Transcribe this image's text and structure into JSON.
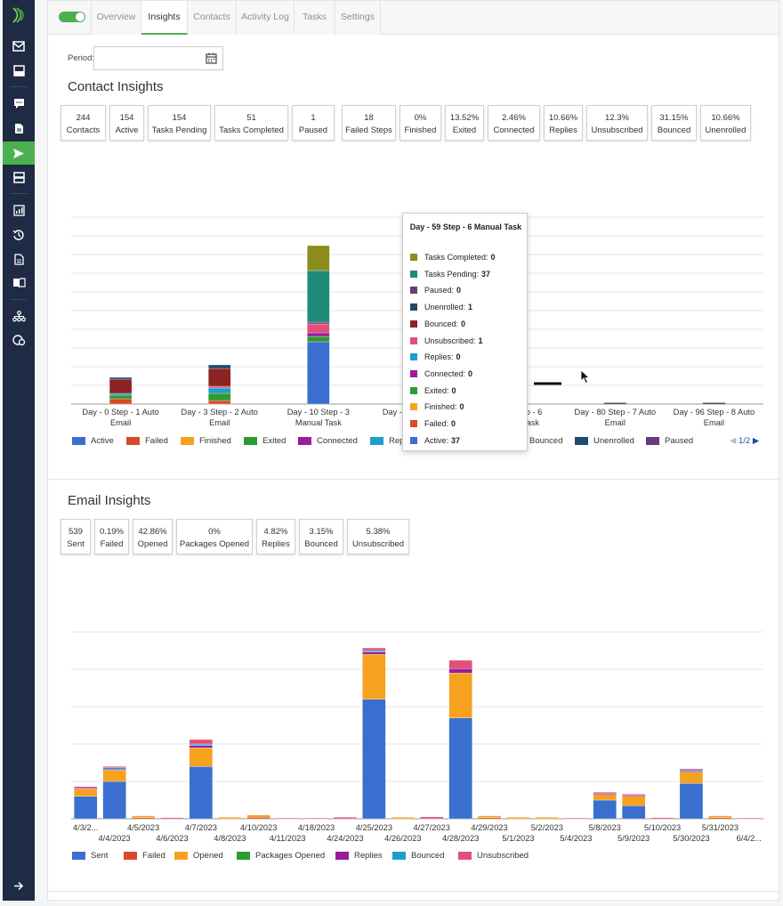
{
  "tabs": [
    {
      "label": "Overview"
    },
    {
      "label": "Insights"
    },
    {
      "label": "Contacts"
    },
    {
      "label": "Activity Log"
    },
    {
      "label": "Tasks"
    },
    {
      "label": "Settings"
    }
  ],
  "period": {
    "label": "Period:",
    "value": ""
  },
  "contact_insights": {
    "title": "Contact Insights",
    "stats": [
      {
        "value": "244",
        "label": "Contacts"
      },
      {
        "value": "154",
        "label": "Active"
      },
      {
        "value": "154",
        "label": "Tasks Pending"
      },
      {
        "value": "51",
        "label": "Tasks Completed"
      },
      {
        "value": "1",
        "label": "Paused"
      },
      {
        "value": "18",
        "label": "Failed Steps"
      },
      {
        "value": "0%",
        "label": "Finished"
      },
      {
        "value": "13.52%",
        "label": "Exited"
      },
      {
        "value": "2.46%",
        "label": "Connected"
      },
      {
        "value": "10.66%",
        "label": "Replies"
      },
      {
        "value": "12.3%",
        "label": "Unsubscribed"
      },
      {
        "value": "31.15%",
        "label": "Bounced"
      },
      {
        "value": "10.66%",
        "label": "Unenrolled"
      }
    ],
    "legend": [
      {
        "label": "Active",
        "color": "#3a6fd0"
      },
      {
        "label": "Failed",
        "color": "#d94a2a"
      },
      {
        "label": "Finished",
        "color": "#f6a21e"
      },
      {
        "label": "Exited",
        "color": "#2e9b2e"
      },
      {
        "label": "Connected",
        "color": "#9b1c9b"
      },
      {
        "label": "Rep",
        "color": "#1f9ec9"
      },
      {
        "label": "Bounced",
        "color": "#8b2323"
      },
      {
        "label": "Unenrolled",
        "color": "#1f4a6e"
      },
      {
        "label": "Paused",
        "color": "#6b3a7a"
      }
    ],
    "pager": "1/2"
  },
  "tooltip": {
    "title": "Day - 59 Step - 6 Manual Task",
    "rows": [
      {
        "label": "Tasks Completed:",
        "value": "0",
        "color": "#8c8c1e"
      },
      {
        "label": "Tasks Pending:",
        "value": "37",
        "color": "#1f8a78"
      },
      {
        "label": "Paused:",
        "value": "0",
        "color": "#6b3a7a"
      },
      {
        "label": "Unenrolled:",
        "value": "1",
        "color": "#1f4a6e"
      },
      {
        "label": "Bounced:",
        "value": "0",
        "color": "#8b2323"
      },
      {
        "label": "Unsubscribed:",
        "value": "1",
        "color": "#e0507a"
      },
      {
        "label": "Replies:",
        "value": "0",
        "color": "#1f9ec9"
      },
      {
        "label": "Connected:",
        "value": "0",
        "color": "#9b1c9b"
      },
      {
        "label": "Exited:",
        "value": "0",
        "color": "#2e9b2e"
      },
      {
        "label": "Finished:",
        "value": "0",
        "color": "#f6a21e"
      },
      {
        "label": "Failed:",
        "value": "0",
        "color": "#d94a2a"
      },
      {
        "label": "Active:",
        "value": "37",
        "color": "#3a6fd0"
      }
    ]
  },
  "email_insights": {
    "title": "Email Insights",
    "stats": [
      {
        "value": "539",
        "label": "Sent"
      },
      {
        "value": "0.19%",
        "label": "Failed"
      },
      {
        "value": "42.86%",
        "label": "Opened"
      },
      {
        "value": "0%",
        "label": "Packages Opened"
      },
      {
        "value": "4.82%",
        "label": "Replies"
      },
      {
        "value": "3.15%",
        "label": "Bounced"
      },
      {
        "value": "5.38%",
        "label": "Unsubscribed"
      }
    ],
    "legend": [
      {
        "label": "Sent",
        "color": "#3a6fd0"
      },
      {
        "label": "Failed",
        "color": "#d94a2a"
      },
      {
        "label": "Opened",
        "color": "#f6a21e"
      },
      {
        "label": "Packages Opened",
        "color": "#2e9b2e"
      },
      {
        "label": "Replies",
        "color": "#9b1c9b"
      },
      {
        "label": "Bounced",
        "color": "#1f9ec9"
      },
      {
        "label": "Unsubscribed",
        "color": "#e0507a"
      }
    ]
  },
  "chart_data": [
    {
      "type": "bar",
      "stacked": true,
      "categories": [
        "Day - 0 Step - 1 Auto Email",
        "Day - 3 Step - 2 Auto Email",
        "Day - 10 Step - 3 Manual Task",
        "Day - 24 Step - 4 A",
        "Day - 59 Step - 6 Manual Task",
        "Day - 80 Step - 7 Auto Email",
        "Day - 96 Step - 8 Auto Email"
      ],
      "category_lines": [
        [
          "Day - 0 Step - 1 Auto",
          "Email"
        ],
        [
          "Day - 3 Step - 2 Auto",
          "Email"
        ],
        [
          "Day - 10 Step - 3",
          "Manual Task"
        ],
        [
          "Day - 24 Step - 4 A",
          ""
        ],
        [
          "y - 59 Step - 6",
          "Manual Task"
        ],
        [
          "Day - 80 Step - 7 Auto",
          "Email"
        ],
        [
          "Day - 96 Step - 8 Auto",
          "Email"
        ]
      ],
      "series": [
        {
          "name": "Active",
          "color": "#3a6fd0",
          "values": [
            0,
            0,
            35,
            0,
            37,
            0,
            0
          ]
        },
        {
          "name": "Failed",
          "color": "#d94a2a",
          "values": [
            3,
            2,
            0,
            0,
            0,
            0,
            0
          ]
        },
        {
          "name": "Finished",
          "color": "#f6a21e",
          "values": [
            0,
            0,
            0,
            0,
            0,
            0,
            0
          ]
        },
        {
          "name": "Exited",
          "color": "#2e9b2e",
          "values": [
            2,
            4,
            3,
            0,
            0,
            0,
            0
          ]
        },
        {
          "name": "Connected",
          "color": "#9b1c9b",
          "values": [
            0,
            0,
            2,
            0,
            0,
            0,
            0
          ]
        },
        {
          "name": "Replies",
          "color": "#1f9ec9",
          "values": [
            1,
            3,
            0,
            0,
            0,
            0,
            0
          ]
        },
        {
          "name": "Unsubscribed",
          "color": "#e0507a",
          "values": [
            0,
            1,
            5,
            0,
            1,
            0,
            0
          ]
        },
        {
          "name": "Bounced",
          "color": "#8b2323",
          "values": [
            8,
            10,
            0,
            1,
            0,
            0,
            0
          ]
        },
        {
          "name": "Unenrolled",
          "color": "#1f4a6e",
          "values": [
            1,
            2,
            0,
            0,
            1,
            0,
            0
          ]
        },
        {
          "name": "Paused",
          "color": "#6b3a7a",
          "values": [
            0,
            0,
            1,
            0,
            0,
            0,
            0
          ]
        },
        {
          "name": "Tasks Pending",
          "color": "#1f8a78",
          "values": [
            0,
            0,
            29,
            0,
            37,
            0,
            0
          ]
        },
        {
          "name": "Tasks Completed",
          "color": "#8c8c1e",
          "values": [
            0,
            0,
            14,
            0,
            0,
            0,
            0
          ]
        }
      ],
      "ylim": [
        0,
        105
      ],
      "grid": true,
      "legend_position": "bottom"
    },
    {
      "type": "bar",
      "stacked": true,
      "categories": [
        "4/3/2...",
        "4/4/2023",
        "4/5/2023",
        "4/6/2023",
        "4/7/2023",
        "4/8/2023",
        "4/10/2023",
        "4/11/2023",
        "4/18/2023",
        "4/24/2023",
        "4/25/2023",
        "4/26/2023",
        "4/27/2023",
        "4/28/2023",
        "4/29/2023",
        "5/1/2023",
        "5/2/2023",
        "5/4/2023",
        "5/8/2023",
        "5/9/2023",
        "5/10/2023",
        "5/30/2023",
        "5/31/2023",
        "6/4/2..."
      ],
      "series": [
        {
          "name": "Sent",
          "color": "#3a6fd0",
          "values": [
            6,
            10,
            0,
            0,
            14,
            0,
            0,
            0,
            0,
            0,
            32,
            0,
            0,
            27,
            0,
            0,
            0,
            0,
            5,
            3.5,
            0,
            9.5,
            0,
            0
          ]
        },
        {
          "name": "Failed",
          "color": "#d94a2a",
          "values": [
            0,
            0,
            0.3,
            0,
            0,
            0,
            0.4,
            0,
            0,
            0,
            0,
            0,
            0,
            0,
            0.3,
            0,
            0,
            0,
            0,
            0,
            0,
            0,
            0.3,
            0
          ]
        },
        {
          "name": "Opened",
          "color": "#f6a21e",
          "values": [
            2,
            3,
            0.5,
            0,
            5,
            0.4,
            0.6,
            0,
            0,
            0,
            12,
            0.4,
            0,
            12,
            0.5,
            0.4,
            0.4,
            0,
            1.5,
            2.5,
            0,
            3,
            0.5,
            0
          ]
        },
        {
          "name": "Packages Opened",
          "color": "#2e9b2e",
          "values": [
            0,
            0,
            0,
            0,
            0,
            0,
            0,
            0,
            0,
            0,
            0,
            0,
            0,
            0,
            0,
            0,
            0,
            0,
            0,
            0,
            0,
            0,
            0,
            0
          ]
        },
        {
          "name": "Replies",
          "color": "#9b1c9b",
          "values": [
            0.3,
            0.3,
            0,
            0,
            0.6,
            0,
            0,
            0,
            0,
            0,
            0.6,
            0,
            0,
            1.2,
            0,
            0,
            0,
            0,
            0.3,
            0.3,
            0,
            0.3,
            0,
            0
          ]
        },
        {
          "name": "Bounced",
          "color": "#1f9ec9",
          "values": [
            0,
            0.4,
            0,
            0,
            0.4,
            0,
            0,
            0,
            0,
            0,
            0.4,
            0,
            0,
            0,
            0,
            0,
            0,
            0,
            0,
            0,
            0,
            0.3,
            0,
            0
          ]
        },
        {
          "name": "Unsubscribed",
          "color": "#e0507a",
          "values": [
            0.3,
            0.3,
            0,
            0.3,
            1.2,
            0,
            0,
            0.2,
            0.2,
            0.4,
            0.7,
            0,
            0.5,
            2.2,
            0,
            0,
            0,
            0.2,
            0.3,
            0.3,
            0.3,
            0.3,
            0,
            0.2
          ]
        }
      ],
      "ylim": [
        0,
        50
      ],
      "grid": true,
      "legend_position": "bottom"
    }
  ]
}
